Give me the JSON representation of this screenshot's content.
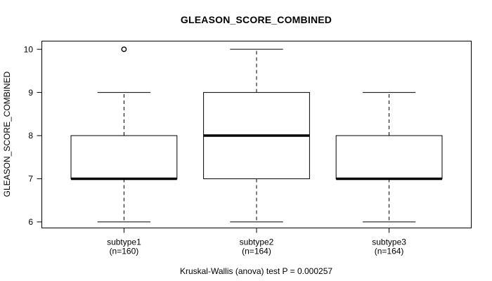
{
  "title": "GLEASON_SCORE_COMBINED",
  "footer": "Kruskal-Wallis (anova) test P = 0.000257",
  "y_axis": {
    "label": "GLEASON_SCORE_COMBINED",
    "tick_labels": [
      "6",
      "7",
      "8",
      "9",
      "10"
    ]
  },
  "x_axis": {
    "group_labels": [
      [
        "subtype1",
        "(n=160)"
      ],
      [
        "subtype2",
        "(n=164)"
      ],
      [
        "subtype3",
        "(n=164)"
      ]
    ]
  },
  "chart_data": {
    "type": "boxplot",
    "title": "GLEASON_SCORE_COMBINED",
    "ylabel": "GLEASON_SCORE_COMBINED",
    "ylim": [
      5.86,
      10.19
    ],
    "yticks": [
      6,
      7,
      8,
      9,
      10
    ],
    "categories": [
      "subtype1",
      "subtype2",
      "subtype3"
    ],
    "groups": [
      {
        "label": "subtype1",
        "n": 160,
        "whisker_low": 6,
        "q1": 7,
        "median": 7,
        "q3": 8,
        "whisker_high": 9,
        "outliers": [
          10
        ]
      },
      {
        "label": "subtype2",
        "n": 164,
        "whisker_low": 6,
        "q1": 7,
        "median": 8,
        "q3": 9,
        "whisker_high": 10,
        "outliers": []
      },
      {
        "label": "subtype3",
        "n": 164,
        "whisker_low": 6,
        "q1": 7,
        "median": 7,
        "q3": 8,
        "whisker_high": 9,
        "outliers": []
      }
    ],
    "annotation": "Kruskal-Wallis (anova) test P = 0.000257",
    "legend": null,
    "grid": false,
    "colors": {
      "stroke": "#000000",
      "box_fill": "#ffffff",
      "background": "#ffffff"
    }
  }
}
